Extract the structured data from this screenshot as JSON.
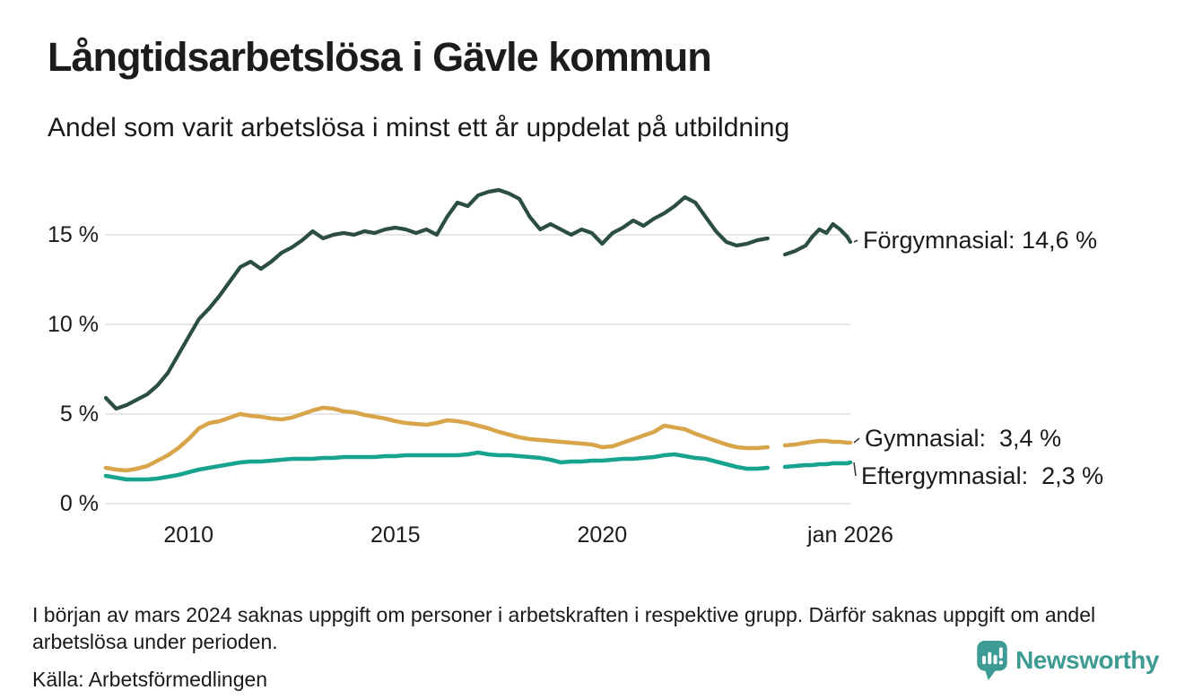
{
  "header": {
    "title": "Långtidsarbetslösa i Gävle kommun",
    "subtitle": "Andel som varit arbetslösa i minst ett år uppdelat på utbildning"
  },
  "chart_data": {
    "type": "line",
    "title": "Långtidsarbetslösa i Gävle kommun",
    "subtitle": "Andel som varit arbetslösa i minst ett år uppdelat på utbildning",
    "x_unit": "decimal_year",
    "xlim": [
      2008,
      2026
    ],
    "ylim": [
      0,
      18.5
    ],
    "grid": "horizontal",
    "legend_position": "right-end-labels",
    "yticks": [
      {
        "value": 0,
        "label": "0 %"
      },
      {
        "value": 5,
        "label": "5 %"
      },
      {
        "value": 10,
        "label": "10 %"
      },
      {
        "value": 15,
        "label": "15 %"
      }
    ],
    "xticks": [
      {
        "value": 2010,
        "label": "2010"
      },
      {
        "value": 2015,
        "label": "2015"
      },
      {
        "value": 2020,
        "label": "2020"
      },
      {
        "value": 2026,
        "label": "jan 2026"
      }
    ],
    "x": [
      2008.0,
      2008.25,
      2008.5,
      2008.75,
      2009.0,
      2009.25,
      2009.5,
      2009.75,
      2010.0,
      2010.25,
      2010.5,
      2010.75,
      2011.0,
      2011.25,
      2011.5,
      2011.75,
      2012.0,
      2012.25,
      2012.5,
      2012.75,
      2013.0,
      2013.25,
      2013.5,
      2013.75,
      2014.0,
      2014.25,
      2014.5,
      2014.75,
      2015.0,
      2015.25,
      2015.5,
      2015.75,
      2016.0,
      2016.25,
      2016.5,
      2016.75,
      2017.0,
      2017.25,
      2017.5,
      2017.75,
      2018.0,
      2018.25,
      2018.5,
      2018.75,
      2019.0,
      2019.25,
      2019.5,
      2019.75,
      2020.0,
      2020.25,
      2020.5,
      2020.75,
      2021.0,
      2021.25,
      2021.5,
      2021.75,
      2022.0,
      2022.25,
      2022.5,
      2022.75,
      2023.0,
      2023.25,
      2023.5,
      2023.75,
      2024.0,
      2024.2,
      2024.42,
      2024.67,
      2024.92,
      2025.08,
      2025.25,
      2025.42,
      2025.58,
      2025.75,
      2025.92,
      2026.0
    ],
    "series": [
      {
        "name": "Förgymnasial",
        "end_label": "Förgymnasial: 14,6 %",
        "end_value": "14,6 %",
        "color": "#2b4d44",
        "stroke_width": 4.2,
        "values": [
          5.9,
          5.3,
          5.5,
          5.8,
          6.1,
          6.6,
          7.3,
          8.3,
          9.3,
          10.3,
          10.9,
          11.6,
          12.4,
          13.2,
          13.5,
          13.1,
          13.5,
          14.0,
          14.3,
          14.7,
          15.2,
          14.8,
          15.0,
          15.1,
          15.0,
          15.2,
          15.1,
          15.3,
          15.4,
          15.3,
          15.1,
          15.3,
          15.0,
          16.0,
          16.8,
          16.6,
          17.2,
          17.4,
          17.5,
          17.3,
          17.0,
          16.0,
          15.3,
          15.6,
          15.3,
          15.0,
          15.3,
          15.1,
          14.5,
          15.1,
          15.4,
          15.8,
          15.5,
          15.9,
          16.2,
          16.6,
          17.1,
          16.8,
          16.0,
          15.2,
          14.6,
          14.4,
          14.5,
          14.7,
          14.8,
          null,
          13.9,
          14.1,
          14.4,
          14.9,
          15.3,
          15.1,
          15.6,
          15.3,
          14.9,
          14.6
        ]
      },
      {
        "name": "Gymnasial",
        "end_label": "Gymnasial:  3,4 %",
        "end_value": "3,4 %",
        "color": "#d8a54a",
        "stroke_width": 4.6,
        "values": [
          2.0,
          1.9,
          1.85,
          1.95,
          2.1,
          2.4,
          2.7,
          3.1,
          3.6,
          4.2,
          4.5,
          4.6,
          4.8,
          5.0,
          4.9,
          4.85,
          4.75,
          4.7,
          4.8,
          5.0,
          5.2,
          5.35,
          5.3,
          5.15,
          5.1,
          4.95,
          4.85,
          4.75,
          4.6,
          4.5,
          4.45,
          4.4,
          4.5,
          4.65,
          4.6,
          4.5,
          4.35,
          4.2,
          4.0,
          3.85,
          3.7,
          3.6,
          3.55,
          3.5,
          3.45,
          3.4,
          3.35,
          3.3,
          3.15,
          3.2,
          3.4,
          3.6,
          3.8,
          4.0,
          4.35,
          4.25,
          4.15,
          3.9,
          3.7,
          3.5,
          3.3,
          3.15,
          3.1,
          3.1,
          3.15,
          null,
          3.25,
          3.3,
          3.4,
          3.45,
          3.5,
          3.5,
          3.45,
          3.45,
          3.4,
          3.4
        ]
      },
      {
        "name": "Eftergymnasial",
        "end_label": "Eftergymnasial:  2,3 %",
        "end_value": "2,3 %",
        "color": "#18a38e",
        "stroke_width": 4.6,
        "values": [
          1.55,
          1.45,
          1.35,
          1.35,
          1.35,
          1.4,
          1.5,
          1.6,
          1.75,
          1.9,
          2.0,
          2.1,
          2.2,
          2.3,
          2.35,
          2.35,
          2.4,
          2.45,
          2.5,
          2.5,
          2.5,
          2.55,
          2.55,
          2.6,
          2.6,
          2.6,
          2.6,
          2.65,
          2.65,
          2.7,
          2.7,
          2.7,
          2.7,
          2.7,
          2.7,
          2.75,
          2.85,
          2.75,
          2.7,
          2.7,
          2.65,
          2.6,
          2.55,
          2.45,
          2.3,
          2.35,
          2.35,
          2.4,
          2.4,
          2.45,
          2.5,
          2.5,
          2.55,
          2.6,
          2.7,
          2.75,
          2.65,
          2.55,
          2.5,
          2.35,
          2.2,
          2.05,
          1.95,
          1.95,
          2.0,
          null,
          2.05,
          2.1,
          2.15,
          2.15,
          2.2,
          2.2,
          2.25,
          2.25,
          2.25,
          2.3
        ]
      }
    ]
  },
  "footer": {
    "note": "I början av mars 2024 saknas uppgift om personer i arbetskraften i respektive grupp. Därför saknas uppgift om andel arbetslösa under perioden.",
    "source": "Källa: Arbetsförmedlingen",
    "brand": "Newsworthy"
  },
  "colors": {
    "grid": "#e7e7e7",
    "leader": "#3a3a3a",
    "text": "#1a1a1a",
    "brand_teal": "#3d9b94"
  }
}
